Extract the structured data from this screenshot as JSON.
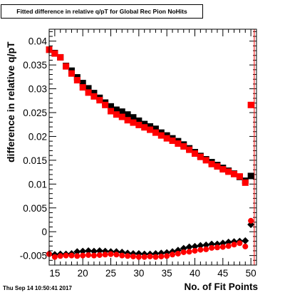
{
  "chart_data": {
    "type": "scatter",
    "title": "Fitted difference in relative q/pT for Global Rec Pion NoHits",
    "xlabel": "No. of Fit Points",
    "ylabel": "difference in relative q/pT",
    "timestamp": "Thu Sep 14 10:50:41 2017",
    "xlim": [
      14,
      51
    ],
    "ylim": [
      -0.007,
      0.0425
    ],
    "xticks": [
      15,
      20,
      25,
      30,
      35,
      40,
      45,
      50
    ],
    "xtick_labels": [
      "15",
      "20",
      "25",
      "30",
      "35",
      "40",
      "45",
      "50"
    ],
    "yticks": [
      -0.005,
      0,
      0.005,
      0.01,
      0.015,
      0.02,
      0.025,
      0.03,
      0.035,
      0.04
    ],
    "ytick_labels": [
      "-0.005",
      "0",
      "0.005",
      "0.01",
      "0.015",
      "0.02",
      "0.025",
      "0.03",
      "0.035",
      "0.04"
    ],
    "x": [
      14,
      15,
      16,
      17,
      18,
      19,
      20,
      21,
      22,
      23,
      24,
      25,
      26,
      27,
      28,
      29,
      30,
      31,
      32,
      33,
      34,
      35,
      36,
      37,
      38,
      39,
      40,
      41,
      42,
      43,
      44,
      45,
      46,
      47,
      48,
      49,
      50
    ],
    "series": [
      {
        "marker": "square",
        "color": "#000000",
        "values": [
          0.0382,
          0.0375,
          0.0366,
          0.0348,
          0.0338,
          0.0324,
          0.0312,
          0.0301,
          0.0291,
          0.0281,
          0.0271,
          0.0263,
          0.0256,
          0.0252,
          0.0246,
          0.024,
          0.0233,
          0.0226,
          0.0221,
          0.0216,
          0.0208,
          0.0202,
          0.0196,
          0.019,
          0.0183,
          0.0175,
          0.0167,
          0.0159,
          0.0152,
          0.0146,
          0.014,
          0.0134,
          0.0128,
          0.0122,
          0.0115,
          0.0107,
          0.0117
        ]
      },
      {
        "marker": "square",
        "color": "#ff0000",
        "values": [
          0.0382,
          0.0374,
          0.0366,
          0.0347,
          0.0332,
          0.0318,
          0.0303,
          0.0292,
          0.0284,
          0.0276,
          0.0266,
          0.0253,
          0.0246,
          0.0241,
          0.0234,
          0.0229,
          0.0224,
          0.0219,
          0.0214,
          0.0208,
          0.0202,
          0.0196,
          0.0191,
          0.0185,
          0.0179,
          0.0172,
          0.0164,
          0.0157,
          0.015,
          0.0142,
          0.0137,
          0.0131,
          0.0126,
          0.0121,
          0.0116,
          0.0103,
          0.0266
        ]
      },
      {
        "marker": "diamond",
        "color": "#000000",
        "values": [
          -0.0046,
          -0.0048,
          -0.0047,
          -0.0047,
          -0.0046,
          -0.0042,
          -0.0041,
          -0.004,
          -0.0041,
          -0.004,
          -0.0041,
          -0.0042,
          -0.0042,
          -0.0043,
          -0.0045,
          -0.0046,
          -0.0046,
          -0.0047,
          -0.0047,
          -0.0046,
          -0.0045,
          -0.0044,
          -0.0042,
          -0.0039,
          -0.0035,
          -0.0032,
          -0.0031,
          -0.0029,
          -0.0028,
          -0.0026,
          -0.0026,
          -0.0024,
          -0.0022,
          -0.0021,
          -0.002,
          -0.0019,
          0.0015
        ]
      },
      {
        "marker": "circle",
        "color": "#ff0000",
        "values": [
          -0.0047,
          -0.0053,
          -0.0051,
          -0.005,
          -0.005,
          -0.0051,
          -0.005,
          -0.0049,
          -0.005,
          -0.0049,
          -0.0048,
          -0.0047,
          -0.0048,
          -0.005,
          -0.0051,
          -0.0052,
          -0.0053,
          -0.0053,
          -0.0052,
          -0.0053,
          -0.0052,
          -0.0051,
          -0.0048,
          -0.0046,
          -0.0043,
          -0.0042,
          -0.004,
          -0.0038,
          -0.0037,
          -0.0034,
          -0.0033,
          -0.0032,
          -0.003,
          -0.0027,
          -0.0024,
          -0.0031,
          0.0023
        ]
      }
    ]
  }
}
